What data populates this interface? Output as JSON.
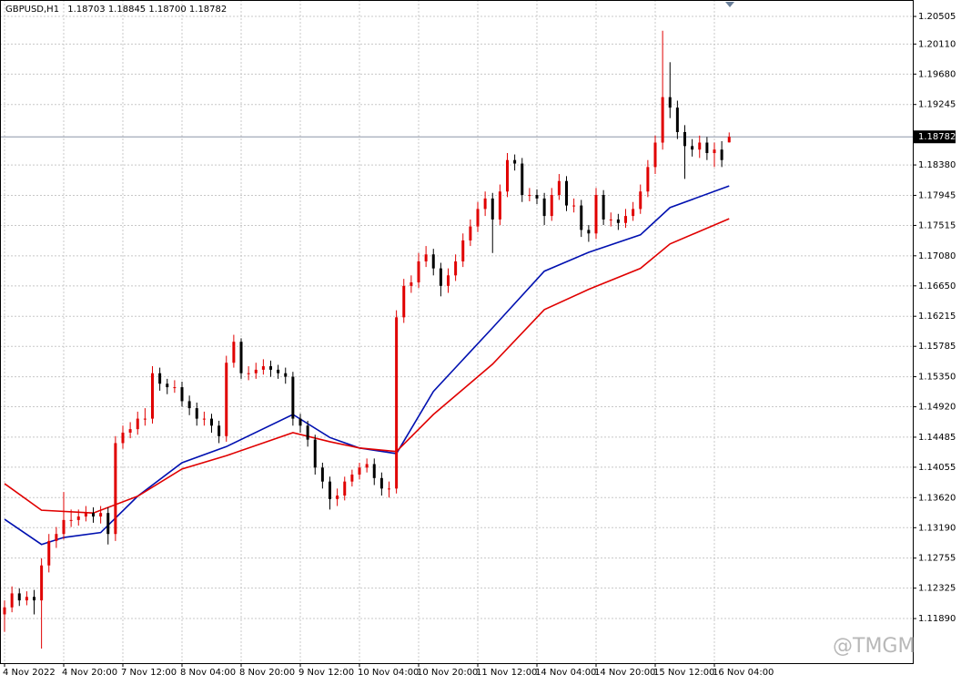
{
  "chart_data": {
    "type": "candlestick",
    "title": "GBPUSD,H1",
    "title_values": [
      "1.18703",
      "1.18845",
      "1.18700",
      "1.18782"
    ],
    "watermark": "@TMGM",
    "up_color": "#e00000",
    "down_color": "#000000",
    "grid": true,
    "ylim": [
      1.11252,
      1.2074
    ],
    "yticks": [
      {
        "value": 1.20505,
        "label": "1.20505"
      },
      {
        "value": 1.2011,
        "label": "1.20110"
      },
      {
        "value": 1.1968,
        "label": "1.19680"
      },
      {
        "value": 1.19245,
        "label": "1.19245"
      },
      {
        "value": 1.1838,
        "label": "1.18380"
      },
      {
        "value": 1.17945,
        "label": "1.17945"
      },
      {
        "value": 1.17515,
        "label": "1.17515"
      },
      {
        "value": 1.1708,
        "label": "1.17080"
      },
      {
        "value": 1.1665,
        "label": "1.16650"
      },
      {
        "value": 1.16215,
        "label": "1.16215"
      },
      {
        "value": 1.15785,
        "label": "1.15785"
      },
      {
        "value": 1.1535,
        "label": "1.15350"
      },
      {
        "value": 1.1492,
        "label": "1.14920"
      },
      {
        "value": 1.14485,
        "label": "1.14485"
      },
      {
        "value": 1.14055,
        "label": "1.14055"
      },
      {
        "value": 1.1362,
        "label": "1.13620"
      },
      {
        "value": 1.1319,
        "label": "1.13190"
      },
      {
        "value": 1.12755,
        "label": "1.12755"
      },
      {
        "value": 1.12325,
        "label": "1.12325"
      },
      {
        "value": 1.1189,
        "label": "1.11890"
      }
    ],
    "current_price": {
      "value": 1.18782,
      "label": "1.18782"
    },
    "xticks": [
      {
        "value": 0,
        "label": "4 Nov 2022"
      },
      {
        "value": 8,
        "label": "4 Nov 20:00"
      },
      {
        "value": 16,
        "label": "7 Nov 12:00"
      },
      {
        "value": 24,
        "label": "8 Nov 04:00"
      },
      {
        "value": 32,
        "label": "8 Nov 20:00"
      },
      {
        "value": 40,
        "label": "9 Nov 12:00"
      },
      {
        "value": 48,
        "label": "10 Nov 04:00"
      },
      {
        "value": 56,
        "label": "10 Nov 20:00"
      },
      {
        "value": 64,
        "label": "11 Nov 12:00"
      },
      {
        "value": 72,
        "label": "14 Nov 04:00"
      },
      {
        "value": 80,
        "label": "14 Nov 20:00"
      },
      {
        "value": 88,
        "label": "15 Nov 12:00"
      },
      {
        "value": 96,
        "label": "16 Nov 04:00"
      }
    ],
    "open": [
      1.1195,
      1.1205,
      1.1225,
      1.1215,
      1.122,
      1.1215,
      1.1265,
      1.13,
      1.131,
      1.133,
      1.133,
      1.1335,
      1.134,
      1.1335,
      1.134,
      1.131,
      1.144,
      1.1455,
      1.146,
      1.1475,
      1.1475,
      1.154,
      1.1525,
      1.152,
      1.152,
      1.15,
      1.149,
      1.1475,
      1.1475,
      1.1465,
      1.145,
      1.1555,
      1.1585,
      1.154,
      1.154,
      1.1545,
      1.155,
      1.1545,
      1.154,
      1.1535,
      1.1475,
      1.1465,
      1.1445,
      1.1405,
      1.1385,
      1.136,
      1.1365,
      1.1385,
      1.1395,
      1.1405,
      1.141,
      1.139,
      1.1375,
      1.1375,
      1.162,
      1.1665,
      1.167,
      1.17,
      1.171,
      1.169,
      1.1665,
      1.168,
      1.17,
      1.173,
      1.175,
      1.1775,
      1.179,
      1.176,
      1.18,
      1.1845,
      1.184,
      1.1795,
      1.1795,
      1.179,
      1.1765,
      1.1795,
      1.1815,
      1.178,
      1.178,
      1.1745,
      1.174,
      1.1795,
      1.176,
      1.176,
      1.1755,
      1.1765,
      1.1775,
      1.18,
      1.1835,
      1.187,
      1.1935,
      1.192,
      1.1885,
      1.1865,
      1.186,
      1.187,
      1.1855,
      1.186,
      1.18703
    ],
    "high": [
      1.1215,
      1.1235,
      1.1232,
      1.1228,
      1.123,
      1.1275,
      1.131,
      1.132,
      1.137,
      1.1345,
      1.1345,
      1.135,
      1.1348,
      1.135,
      1.1348,
      1.145,
      1.1465,
      1.147,
      1.1485,
      1.149,
      1.155,
      1.1548,
      1.1532,
      1.153,
      1.1528,
      1.1508,
      1.1498,
      1.1485,
      1.1482,
      1.1472,
      1.1565,
      1.1595,
      1.159,
      1.155,
      1.1555,
      1.156,
      1.1558,
      1.1552,
      1.1548,
      1.1542,
      1.1482,
      1.1472,
      1.1452,
      1.1412,
      1.1392,
      1.1375,
      1.1392,
      1.1402,
      1.1412,
      1.1418,
      1.1418,
      1.1398,
      1.1385,
      1.163,
      1.1675,
      1.168,
      1.1712,
      1.1722,
      1.1718,
      1.1698,
      1.169,
      1.171,
      1.174,
      1.176,
      1.1785,
      1.18,
      1.1798,
      1.181,
      1.1855,
      1.1853,
      1.1848,
      1.1805,
      1.1803,
      1.1798,
      1.1805,
      1.1825,
      1.1822,
      1.179,
      1.1788,
      1.1752,
      1.1805,
      1.1802,
      1.177,
      1.1768,
      1.1775,
      1.1785,
      1.181,
      1.1845,
      1.188,
      1.203,
      1.1985,
      1.193,
      1.1895,
      1.1875,
      1.188,
      1.1878,
      1.187,
      1.1872,
      1.18845
    ],
    "low": [
      1.117,
      1.1198,
      1.1207,
      1.1208,
      1.1195,
      1.1146,
      1.1255,
      1.129,
      1.1302,
      1.132,
      1.1322,
      1.1328,
      1.1326,
      1.1325,
      1.1295,
      1.13,
      1.1432,
      1.1447,
      1.1452,
      1.1465,
      1.1468,
      1.1515,
      1.151,
      1.1512,
      1.1492,
      1.148,
      1.1465,
      1.1465,
      1.1455,
      1.144,
      1.1442,
      1.1548,
      1.1532,
      1.153,
      1.1532,
      1.1538,
      1.1535,
      1.1532,
      1.1525,
      1.1465,
      1.1455,
      1.1435,
      1.1395,
      1.1375,
      1.1345,
      1.135,
      1.1358,
      1.1378,
      1.1388,
      1.1398,
      1.138,
      1.1365,
      1.1362,
      1.1368,
      1.1612,
      1.1655,
      1.1662,
      1.1692,
      1.168,
      1.165,
      1.1655,
      1.1672,
      1.1692,
      1.1722,
      1.1742,
      1.1765,
      1.1712,
      1.1752,
      1.1792,
      1.183,
      1.1785,
      1.1786,
      1.1782,
      1.1752,
      1.1758,
      1.1788,
      1.1772,
      1.177,
      1.1735,
      1.1728,
      1.1732,
      1.1752,
      1.175,
      1.1745,
      1.1748,
      1.1758,
      1.1768,
      1.1792,
      1.1825,
      1.186,
      1.1905,
      1.1875,
      1.1818,
      1.185,
      1.1848,
      1.1845,
      1.1835,
      1.1835,
      1.187
    ],
    "close": [
      1.1205,
      1.1225,
      1.1215,
      1.122,
      1.1215,
      1.1265,
      1.13,
      1.131,
      1.133,
      1.133,
      1.1335,
      1.134,
      1.1335,
      1.134,
      1.131,
      1.144,
      1.1455,
      1.146,
      1.1475,
      1.1475,
      1.154,
      1.1525,
      1.152,
      1.152,
      1.15,
      1.149,
      1.1475,
      1.1475,
      1.1465,
      1.145,
      1.1555,
      1.1585,
      1.154,
      1.154,
      1.1545,
      1.155,
      1.1545,
      1.154,
      1.1535,
      1.1475,
      1.1465,
      1.1445,
      1.1405,
      1.1385,
      1.136,
      1.1365,
      1.1385,
      1.1395,
      1.1405,
      1.141,
      1.139,
      1.1375,
      1.1375,
      1.162,
      1.1665,
      1.167,
      1.17,
      1.171,
      1.169,
      1.1665,
      1.168,
      1.17,
      1.173,
      1.175,
      1.1775,
      1.179,
      1.176,
      1.18,
      1.1845,
      1.184,
      1.1795,
      1.1795,
      1.179,
      1.1765,
      1.1795,
      1.1815,
      1.178,
      1.178,
      1.1745,
      1.174,
      1.1795,
      1.176,
      1.176,
      1.1755,
      1.1765,
      1.1775,
      1.18,
      1.1835,
      1.187,
      1.1935,
      1.192,
      1.1885,
      1.1865,
      1.186,
      1.187,
      1.1855,
      1.186,
      1.1845,
      1.18782
    ],
    "lines": [
      {
        "color": "#0010b0",
        "x": [
          0,
          5,
          8,
          13,
          18,
          24,
          30,
          39,
          44,
          48,
          53,
          58,
          66,
          73,
          79,
          86,
          90,
          98
        ],
        "values": [
          1.1331,
          1.1295,
          1.1305,
          1.1312,
          1.1364,
          1.1412,
          1.1435,
          1.1481,
          1.1448,
          1.1433,
          1.1425,
          1.1514,
          1.1605,
          1.1686,
          1.1713,
          1.1738,
          1.1777,
          1.1808
        ]
      },
      {
        "color": "#e00000",
        "x": [
          0,
          5,
          12,
          18,
          24,
          30,
          39,
          44,
          48,
          53,
          58,
          66,
          73,
          79,
          86,
          90,
          98
        ],
        "values": [
          1.1382,
          1.1344,
          1.134,
          1.1364,
          1.1403,
          1.1422,
          1.1455,
          1.1442,
          1.1433,
          1.1428,
          1.1481,
          1.1553,
          1.1631,
          1.166,
          1.169,
          1.1725,
          1.1761
        ]
      }
    ]
  }
}
